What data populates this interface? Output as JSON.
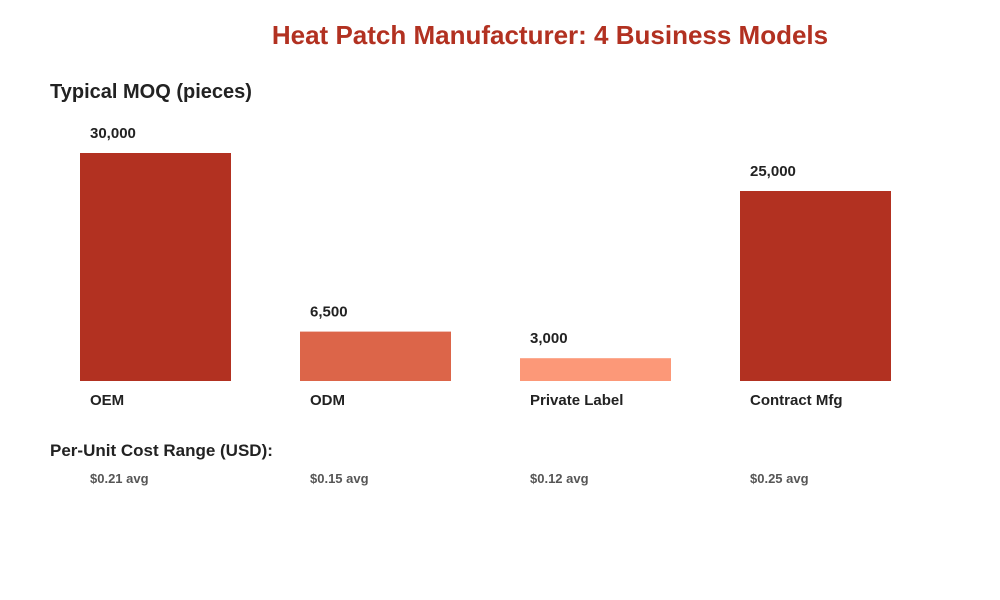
{
  "title": "Heat Patch Manufacturer: 4 Business Models",
  "chart_data": {
    "type": "bar",
    "title": "Typical MOQ (pieces)",
    "categories": [
      "OEM",
      "ODM",
      "Private Label",
      "Contract Mfg"
    ],
    "values": [
      30000,
      6500,
      3000,
      25000
    ],
    "value_labels": [
      "30,000",
      "6,500",
      "3,000",
      "25,000"
    ],
    "colors": [
      "#b23121",
      "#dc6549",
      "#fc9878",
      "#b23121"
    ],
    "ylim": [
      0,
      30000
    ],
    "grid": false
  },
  "cost": {
    "heading": "Per-Unit Cost Range (USD):",
    "items": [
      "$0.21 avg",
      "$0.15 avg",
      "$0.12 avg",
      "$0.25 avg"
    ]
  }
}
